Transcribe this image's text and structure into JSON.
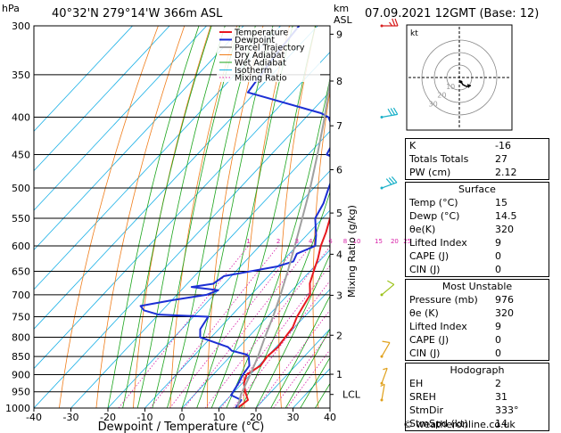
{
  "header": {
    "units_p": "hPa",
    "location": "40°32'N  279°14'W  366m ASL",
    "units_km": "km",
    "units_asl": "ASL",
    "date": "07.09.2021 12GMT (Base: 12)"
  },
  "chart_data": {
    "type": "line",
    "title": "40°32'N  279°14'W  366m ASL",
    "xlabel": "Dewpoint / Temperature (°C)",
    "ylabel": "hPa",
    "right_ylabel": "Mixing Ratio (g/kg)",
    "xlim": [
      -40,
      40
    ],
    "ylim": [
      1000,
      300
    ],
    "x_ticks": [
      "-40",
      "-30",
      "-20",
      "-10",
      "0",
      "10",
      "20",
      "30",
      "40"
    ],
    "y_ticks": [
      "300",
      "350",
      "400",
      "450",
      "500",
      "550",
      "600",
      "650",
      "700",
      "750",
      "800",
      "850",
      "900",
      "950",
      "1000"
    ],
    "km_ticks": [
      {
        "km": "9",
        "p": 308
      },
      {
        "km": "8",
        "p": 357
      },
      {
        "km": "7",
        "p": 411
      },
      {
        "km": "6",
        "p": 472
      },
      {
        "km": "5",
        "p": 541
      },
      {
        "km": "4",
        "p": 616
      },
      {
        "km": "3",
        "p": 701
      },
      {
        "km": "2",
        "p": 795
      },
      {
        "km": "1",
        "p": 899
      },
      {
        "km": "LCL",
        "p": 958
      }
    ],
    "mixing_ratio_labels": [
      "1",
      "2",
      "3",
      "4",
      "6",
      "8",
      "10",
      "15",
      "20",
      "25"
    ],
    "legend": [
      "Temperature",
      "Dewpoint",
      "Parcel Trajectory",
      "Dry Adiabat",
      "Wet Adiabat",
      "Isotherm",
      "Mixing Ratio"
    ],
    "colors": {
      "temperature": "#e8181e",
      "dewpoint": "#1c2fd4",
      "parcel": "#a0a0a0",
      "dry_adiabat": "#f07d1a",
      "wet_adiabat": "#1aa41a",
      "isotherm": "#19b0e6",
      "mixing_ratio": "#d81fa8"
    },
    "series": [
      {
        "name": "Temperature",
        "points": [
          [
            1000,
            15
          ],
          [
            975,
            15.8
          ],
          [
            950,
            13
          ],
          [
            925,
            10.5
          ],
          [
            900,
            9
          ],
          [
            875,
            10.5
          ],
          [
            850,
            10
          ],
          [
            825,
            10.5
          ],
          [
            800,
            10
          ],
          [
            775,
            9.5
          ],
          [
            750,
            8
          ],
          [
            725,
            7
          ],
          [
            700,
            6
          ],
          [
            675,
            3
          ],
          [
            650,
            1
          ],
          [
            625,
            -1
          ],
          [
            600,
            -3.5
          ],
          [
            575,
            -5.5
          ],
          [
            550,
            -8
          ],
          [
            525,
            -10
          ],
          [
            500,
            -13
          ],
          [
            475,
            -15
          ],
          [
            450,
            -17.5
          ],
          [
            425,
            -20
          ],
          [
            400,
            -23.5
          ],
          [
            375,
            -25.5
          ],
          [
            350,
            -28
          ],
          [
            325,
            -31
          ],
          [
            300,
            -36
          ]
        ]
      },
      {
        "name": "Dewpoint",
        "points": [
          [
            1000,
            14.5
          ],
          [
            975,
            14
          ],
          [
            960,
            10
          ],
          [
            925,
            9
          ],
          [
            900,
            8
          ],
          [
            875,
            7.5
          ],
          [
            850,
            5
          ],
          [
            845,
            4
          ],
          [
            835,
            -1
          ],
          [
            825,
            -3
          ],
          [
            800,
            -13
          ],
          [
            780,
            -15
          ],
          [
            750,
            -16
          ],
          [
            745,
            -30
          ],
          [
            735,
            -35
          ],
          [
            725,
            -37
          ],
          [
            712,
            -30
          ],
          [
            700,
            -22
          ],
          [
            690,
            -20
          ],
          [
            683,
            -28
          ],
          [
            676,
            -23
          ],
          [
            660,
            -22
          ],
          [
            640,
            -10
          ],
          [
            630,
            -7
          ],
          [
            615,
            -8
          ],
          [
            600,
            -5
          ],
          [
            580,
            -7.5
          ],
          [
            550,
            -12
          ],
          [
            525,
            -13.5
          ],
          [
            500,
            -16
          ],
          [
            475,
            -18.5
          ],
          [
            455,
            -22
          ],
          [
            450,
            -25
          ],
          [
            425,
            -27
          ],
          [
            400,
            -34
          ],
          [
            395,
            -37
          ],
          [
            370,
            -62
          ],
          [
            330,
            -64
          ],
          [
            300,
            -65
          ]
        ]
      },
      {
        "name": "Parcel Trajectory",
        "points": [
          [
            1000,
            15
          ],
          [
            958,
            12.5
          ],
          [
            900,
            10
          ],
          [
            850,
            7.5
          ],
          [
            800,
            4.5
          ],
          [
            750,
            1.5
          ],
          [
            700,
            -2
          ],
          [
            650,
            -6
          ],
          [
            600,
            -10.5
          ],
          [
            550,
            -15.5
          ],
          [
            500,
            -21
          ],
          [
            450,
            -27.5
          ],
          [
            400,
            -35
          ],
          [
            350,
            -44
          ],
          [
            300,
            -54
          ]
        ]
      }
    ],
    "wind_barbs": [
      {
        "p": 300,
        "dir": 270,
        "spd": 25
      },
      {
        "p": 400,
        "dir": 260,
        "spd": 30
      },
      {
        "p": 500,
        "dir": 250,
        "spd": 30
      },
      {
        "p": 700,
        "dir": 230,
        "spd": 10
      },
      {
        "p": 850,
        "dir": 210,
        "spd": 10
      },
      {
        "p": 925,
        "dir": 200,
        "spd": 5
      },
      {
        "p": 975,
        "dir": 190,
        "spd": 5
      }
    ],
    "hodograph": {
      "unit": "kt",
      "ring_labels": [
        "10",
        "20",
        "30"
      ]
    }
  },
  "indices": {
    "top": [
      {
        "label": "K",
        "value": "-16"
      },
      {
        "label": "Totals Totals",
        "value": "27"
      },
      {
        "label": "PW (cm)",
        "value": "2.12"
      }
    ],
    "surface_title": "Surface",
    "surface": [
      {
        "label": "Temp (°C)",
        "value": "15"
      },
      {
        "label": "Dewp (°C)",
        "value": "14.5"
      },
      {
        "label": "θe(K)",
        "value": "320"
      },
      {
        "label": "Lifted Index",
        "value": "9"
      },
      {
        "label": "CAPE (J)",
        "value": "0"
      },
      {
        "label": "CIN (J)",
        "value": "0"
      }
    ],
    "unstable_title": "Most Unstable",
    "unstable": [
      {
        "label": "Pressure (mb)",
        "value": "976"
      },
      {
        "label": "θe (K)",
        "value": "320"
      },
      {
        "label": "Lifted Index",
        "value": "9"
      },
      {
        "label": "CAPE (J)",
        "value": "0"
      },
      {
        "label": "CIN (J)",
        "value": "0"
      }
    ],
    "hodo_title": "Hodograph",
    "hodo": [
      {
        "label": "EH",
        "value": "2"
      },
      {
        "label": "SREH",
        "value": "31"
      },
      {
        "label": "StmDir",
        "value": "333°"
      },
      {
        "label": "StmSpd (kt)",
        "value": "14"
      }
    ]
  },
  "footer": "© weatheronline.co.uk"
}
